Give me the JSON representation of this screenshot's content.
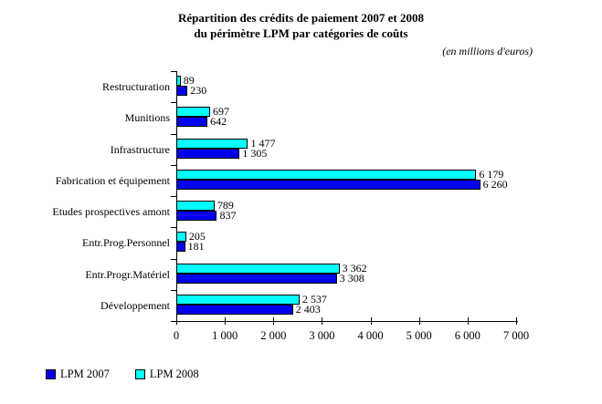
{
  "title": {
    "line1": "Répartition des crédits de paiement 2007 et 2008",
    "line2": "du périmètre LPM par catégories de coûts"
  },
  "subtitle": "(en millions d'euros)",
  "chart_data": {
    "type": "bar",
    "orientation": "horizontal",
    "title": "Répartition des crédits de paiement 2007 et 2008 du périmètre LPM par catégories de coûts",
    "units_note": "(en millions d'euros)",
    "categories": [
      "Restructuration",
      "Munitions",
      "Infrastructure",
      "Fabrication et équipement",
      "Etudes prospectives amont",
      "Entr.Prog.Personnel",
      "Entr.Progr.Matériel",
      "Développement"
    ],
    "series": [
      {
        "name": "LPM 2007",
        "color": "#0000EE",
        "values": [
          230,
          642,
          1305,
          6260,
          837,
          181,
          3308,
          2403
        ],
        "values_display": [
          "230",
          "642",
          "1 305",
          "6 260",
          "837",
          "181",
          "3 308",
          "2 403"
        ]
      },
      {
        "name": "LPM 2008",
        "color": "#00FFFF",
        "values": [
          89,
          697,
          1477,
          6179,
          789,
          205,
          3362,
          2537
        ],
        "values_display": [
          "89",
          "697",
          "1 477",
          "6 179",
          "789",
          "205",
          "3 362",
          "2 537"
        ]
      }
    ],
    "bar_order_top_to_bottom": [
      "LPM 2008",
      "LPM 2007"
    ],
    "x_axis": {
      "min": 0,
      "max": 7000,
      "tick_step": 1000,
      "tick_labels": [
        "0",
        "1 000",
        "2 000",
        "3 000",
        "4 000",
        "5 000",
        "6 000",
        "7 000"
      ]
    },
    "legend": {
      "position": "bottom-left",
      "entries": [
        "LPM 2007",
        "LPM 2008"
      ]
    },
    "grid": false,
    "background": "#FFFFFF",
    "axis_color": "#000000",
    "text_color": "#000000"
  }
}
